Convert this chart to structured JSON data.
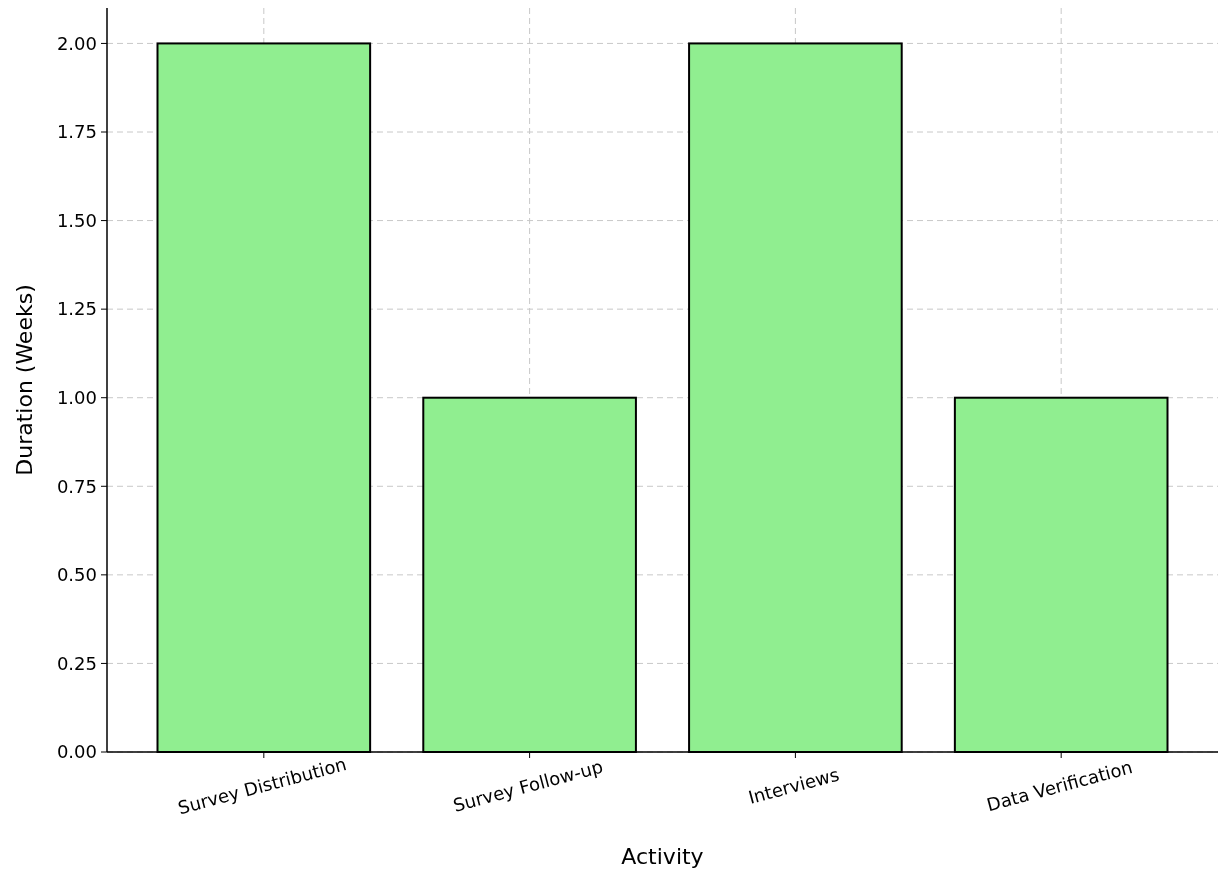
{
  "chart_data": {
    "type": "bar",
    "xlabel": "Activity",
    "ylabel": "Duration (Weeks)",
    "categories": [
      "Survey Distribution",
      "Survey Follow-up",
      "Interviews",
      "Data Verification"
    ],
    "values": [
      2,
      1,
      2,
      1
    ],
    "color": "#90ee90",
    "ylim": [
      0,
      2.1
    ],
    "yticks": [
      {
        "value": 0,
        "label": "0.00"
      },
      {
        "value": 0.25,
        "label": "0.25"
      },
      {
        "value": 0.5,
        "label": "0.50"
      },
      {
        "value": 0.75,
        "label": "0.75"
      },
      {
        "value": 1,
        "label": "1.00"
      },
      {
        "value": 1.25,
        "label": "1.25"
      },
      {
        "value": 1.5,
        "label": "1.50"
      },
      {
        "value": 1.75,
        "label": "1.75"
      },
      {
        "value": 2,
        "label": "2.00"
      }
    ],
    "grid": true
  }
}
